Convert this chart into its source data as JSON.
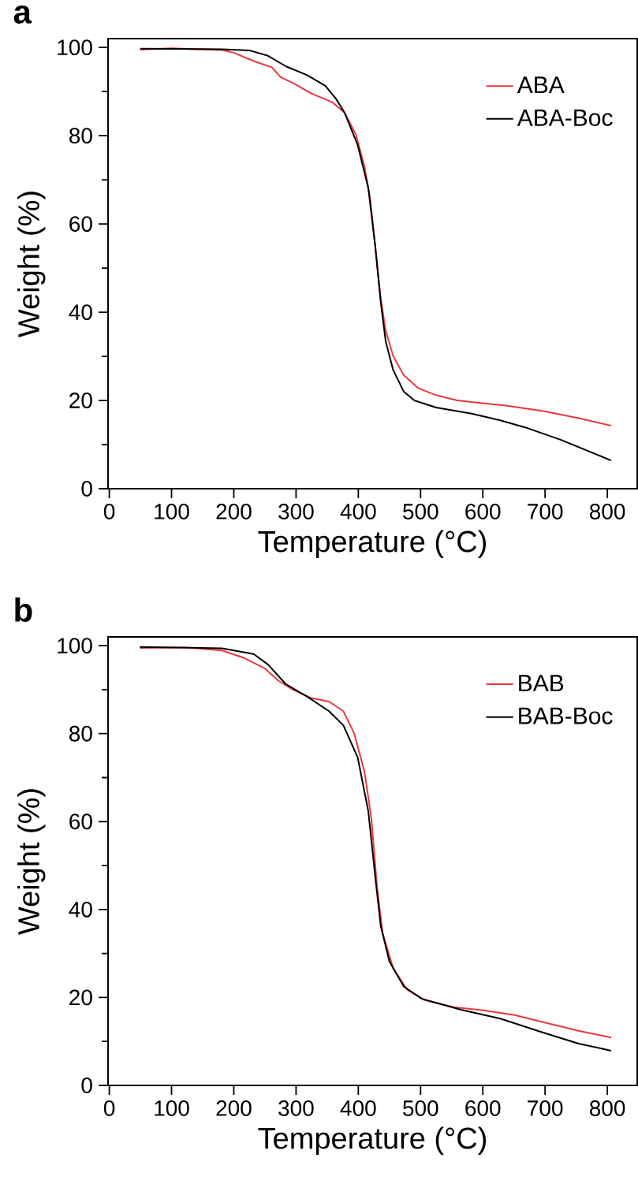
{
  "chart_data": [
    {
      "type": "line",
      "title": "a",
      "xlabel": "Temperature (°C)",
      "ylabel": "Weight (%)",
      "xlim": [
        -2,
        848
      ],
      "ylim": [
        0,
        102
      ],
      "xticks": [
        0,
        100,
        200,
        300,
        400,
        500,
        600,
        700,
        800
      ],
      "yticks": [
        0,
        20,
        40,
        60,
        80,
        100
      ],
      "legend": "top right",
      "grid": false,
      "marker": "none",
      "line_style": "solid",
      "series": [
        {
          "name": "ABA",
          "color": "#e8383d",
          "x": [
            49,
            100,
            181,
            200,
            232,
            261,
            275,
            298,
            324,
            358,
            378,
            396,
            410,
            419,
            427,
            436,
            444,
            456,
            473,
            496,
            525,
            559,
            599,
            639,
            697,
            754,
            806
          ],
          "values": [
            99.5,
            99.8,
            99.4,
            98.8,
            96.9,
            95.5,
            93.3,
            91.7,
            89.6,
            87.6,
            85.2,
            80.3,
            73,
            65.7,
            55.2,
            43.1,
            35.8,
            30.1,
            25.7,
            22.8,
            21.2,
            20,
            19.4,
            18.8,
            17.6,
            16,
            14.3
          ]
        },
        {
          "name": "ABA-Boc",
          "color": "#000000",
          "x": [
            50,
            181,
            226,
            255,
            284,
            318,
            347,
            364,
            378,
            399,
            416,
            427,
            436,
            444,
            456,
            473,
            490,
            525,
            582,
            628,
            668,
            725,
            806
          ],
          "values": [
            99.7,
            99.6,
            99.3,
            98.1,
            95.7,
            93.7,
            91.3,
            88.4,
            85.2,
            77.9,
            68.2,
            55.2,
            42.3,
            33.4,
            26.9,
            22,
            20,
            18.4,
            17,
            15.5,
            13.9,
            11.1,
            6.4
          ]
        }
      ]
    },
    {
      "type": "line",
      "title": "b",
      "xlabel": "Temperature (°C)",
      "ylabel": "Weight (%)",
      "xlim": [
        -2,
        848
      ],
      "ylim": [
        0,
        102
      ],
      "xticks": [
        0,
        100,
        200,
        300,
        400,
        500,
        600,
        700,
        800
      ],
      "yticks": [
        0,
        20,
        40,
        60,
        80,
        100
      ],
      "legend": "top right",
      "grid": false,
      "marker": "none",
      "line_style": "solid",
      "series": [
        {
          "name": "BAB",
          "color": "#e8383d",
          "x": [
            49,
            123,
            181,
            215,
            249,
            272,
            295,
            324,
            353,
            376,
            393,
            410,
            421,
            430,
            439,
            456,
            479,
            507,
            553,
            599,
            651,
            697,
            754,
            806
          ],
          "values": [
            99.5,
            99.6,
            98.9,
            97.3,
            94.9,
            92,
            90,
            88.1,
            87.3,
            85.1,
            80.2,
            71.3,
            60.7,
            45.3,
            34.7,
            26.6,
            21.7,
            19.4,
            17.8,
            17.1,
            16,
            14.4,
            12.4,
            10.9
          ]
        },
        {
          "name": "BAB-Boc",
          "color": "#000000",
          "x": [
            49,
            181,
            232,
            255,
            284,
            318,
            353,
            376,
            399,
            416,
            427,
            436,
            450,
            473,
            502,
            565,
            628,
            697,
            754,
            806
          ],
          "values": [
            99.7,
            99.4,
            98.1,
            95.7,
            91.2,
            88.4,
            85.1,
            81.9,
            74.6,
            62.4,
            47.7,
            36.3,
            28.2,
            22.5,
            19.7,
            17.2,
            15.2,
            12,
            9.5,
            7.9
          ]
        }
      ]
    }
  ]
}
